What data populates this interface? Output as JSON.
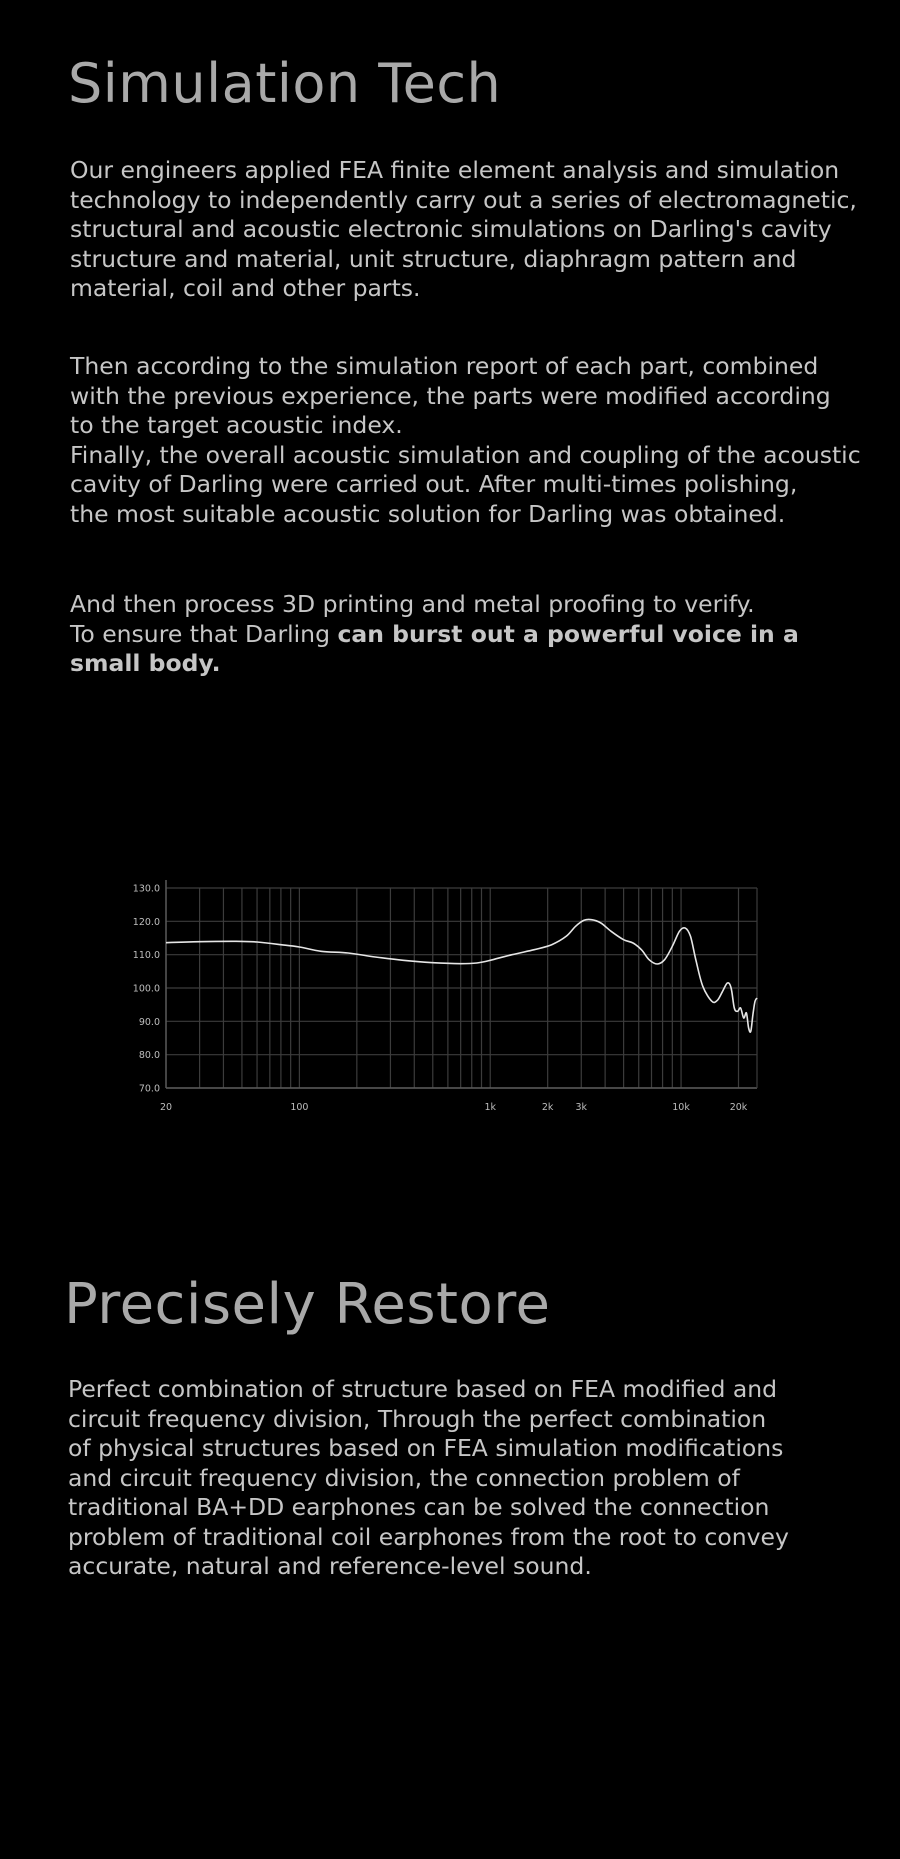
{
  "section1": {
    "title": "Simulation Tech",
    "p1": "Our engineers applied FEA finite element analysis and simulation\ntechnology to independently carry out a series of electromagnetic,\nstructural and acoustic electronic simulations on Darling's cavity\nstructure and material, unit structure, diaphragm pattern and\nmaterial, coil and other parts.",
    "p2": "Then according to the simulation report of each part, combined\nwith the previous experience, the parts were modified according\nto the target acoustic index.\nFinally, the overall acoustic simulation and coupling of the acoustic\ncavity of Darling were carried out. After multi-times polishing,\nthe most suitable acoustic solution for Darling was obtained.",
    "p3_normal": "And then process 3D printing and metal proofing to verify.\nTo ensure that Darling ",
    "p3_bold": "can burst out a powerful voice in a\nsmall body."
  },
  "section2": {
    "title": "Precisely Restore",
    "p1": "Perfect combination of structure based on FEA modified and\ncircuit frequency division, Through the perfect combination\nof physical structures based on FEA simulation modifications\nand circuit frequency division, the connection problem of\ntraditional BA+DD earphones can be solved the connection\nproblem of traditional coil earphones from the root to convey\naccurate, natural and reference-level sound."
  },
  "chart_data": {
    "type": "line",
    "title": "",
    "xlabel": "",
    "ylabel": "",
    "x_scale": "log",
    "xlim": [
      20,
      25000
    ],
    "ylim": [
      70,
      130
    ],
    "grid": true,
    "x_ticks": [
      {
        "value": 20,
        "label": "20"
      },
      {
        "value": 100,
        "label": "100"
      },
      {
        "value": 1000,
        "label": "1k"
      },
      {
        "value": 2000,
        "label": "2k"
      },
      {
        "value": 3000,
        "label": "3k"
      },
      {
        "value": 10000,
        "label": "10k"
      },
      {
        "value": 20000,
        "label": "20k"
      }
    ],
    "y_ticks": [
      {
        "value": 70,
        "label": "70.0"
      },
      {
        "value": 80,
        "label": "80.0"
      },
      {
        "value": 90,
        "label": "90.0"
      },
      {
        "value": 100,
        "label": "100.0"
      },
      {
        "value": 110,
        "label": "110.0"
      },
      {
        "value": 120,
        "label": "120.0"
      },
      {
        "value": 130,
        "label": "130.0"
      }
    ],
    "series": [
      {
        "color": "#e6e6e6",
        "points": [
          [
            20,
            113.6
          ],
          [
            30,
            113.9
          ],
          [
            45,
            114.0
          ],
          [
            60,
            113.8
          ],
          [
            80,
            113.0
          ],
          [
            100,
            112.3
          ],
          [
            130,
            111.0
          ],
          [
            180,
            110.5
          ],
          [
            250,
            109.3
          ],
          [
            350,
            108.3
          ],
          [
            500,
            107.6
          ],
          [
            700,
            107.3
          ],
          [
            850,
            107.5
          ],
          [
            1000,
            108.3
          ],
          [
            1300,
            110.0
          ],
          [
            1700,
            111.5
          ],
          [
            2100,
            113.0
          ],
          [
            2500,
            115.5
          ],
          [
            2800,
            118.5
          ],
          [
            3100,
            120.3
          ],
          [
            3400,
            120.5
          ],
          [
            3800,
            119.5
          ],
          [
            4300,
            117.0
          ],
          [
            5000,
            114.5
          ],
          [
            5600,
            113.5
          ],
          [
            6200,
            111.5
          ],
          [
            6800,
            108.5
          ],
          [
            7500,
            107.2
          ],
          [
            8200,
            108.5
          ],
          [
            9000,
            112.5
          ],
          [
            9800,
            117.0
          ],
          [
            10500,
            118.0
          ],
          [
            11200,
            115.5
          ],
          [
            12000,
            108.0
          ],
          [
            13000,
            100.5
          ],
          [
            14500,
            96.0
          ],
          [
            15500,
            96.3
          ],
          [
            16500,
            99.0
          ],
          [
            17500,
            101.5
          ],
          [
            18300,
            100.0
          ],
          [
            19000,
            94.0
          ],
          [
            19800,
            93.0
          ],
          [
            20500,
            94.0
          ],
          [
            21300,
            91.0
          ],
          [
            22000,
            92.5
          ],
          [
            22600,
            88.0
          ],
          [
            23200,
            87.0
          ],
          [
            23800,
            92.0
          ],
          [
            24400,
            96.0
          ],
          [
            25000,
            97.0
          ]
        ]
      }
    ]
  }
}
